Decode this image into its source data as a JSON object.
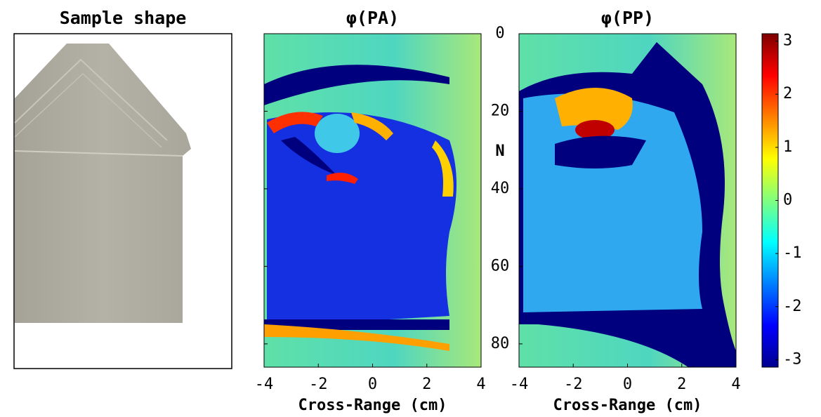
{
  "sample": {
    "title": "Sample shape"
  },
  "chart_data": [
    {
      "type": "heatmap",
      "title": "φ(PA)",
      "xlabel": "Cross-Range (cm)",
      "xlim": [
        -4,
        4
      ],
      "xticks": [
        -4,
        -2,
        0,
        2,
        4
      ],
      "ylabel": "N",
      "ylim": [
        0,
        86
      ],
      "yticks": [
        0,
        20,
        40,
        60,
        80
      ]
    },
    {
      "type": "heatmap",
      "title": "φ(PP)",
      "xlabel": "Cross-Range (cm)",
      "xlim": [
        -4,
        4
      ],
      "xticks": [
        -4,
        -2,
        0,
        2,
        4
      ],
      "colorbar": {
        "lim": [
          -3.14,
          3.14
        ],
        "ticks": [
          3,
          2,
          1,
          0,
          -1,
          -2,
          -3
        ]
      }
    }
  ]
}
